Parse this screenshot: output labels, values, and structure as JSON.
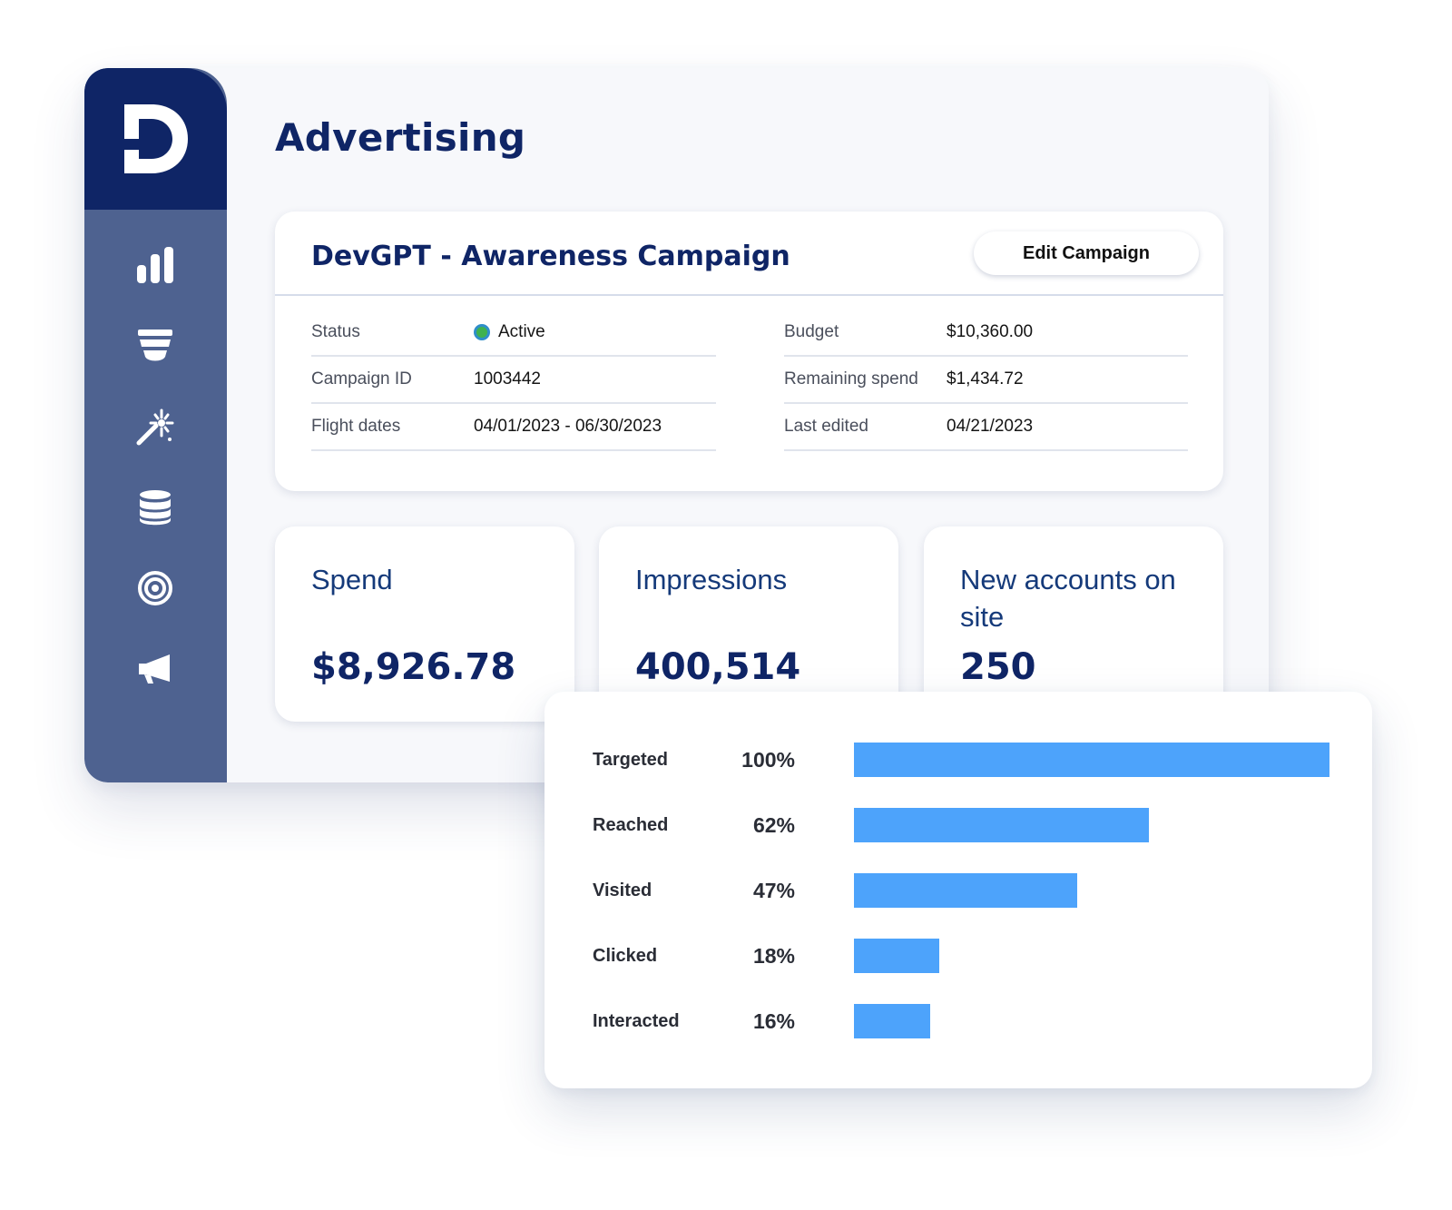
{
  "brand": {
    "logo_letter": "D",
    "logo_name": "d-logo-icon",
    "navy": "#0f2566",
    "sidebar": "#4e6290",
    "accent": "#4da3fb"
  },
  "sidebar": {
    "items": [
      {
        "icon": "bar-chart-icon"
      },
      {
        "icon": "funnel-icon"
      },
      {
        "icon": "magic-wand-icon"
      },
      {
        "icon": "database-icon"
      },
      {
        "icon": "target-icon"
      },
      {
        "icon": "megaphone-icon"
      }
    ]
  },
  "page": {
    "title": "Advertising"
  },
  "campaign": {
    "title": "DevGPT - Awareness Campaign",
    "edit_label": "Edit Campaign",
    "details_left": [
      {
        "label": "Status",
        "value": "Active",
        "status_color": "#3fb24f"
      },
      {
        "label": "Campaign ID",
        "value": "1003442"
      },
      {
        "label": "Flight dates",
        "value": "04/01/2023 - 06/30/2023"
      }
    ],
    "details_right": [
      {
        "label": "Budget",
        "value": "$10,360.00"
      },
      {
        "label": "Remaining spend",
        "value": "$1,434.72"
      },
      {
        "label": "Last edited",
        "value": "04/21/2023"
      }
    ]
  },
  "metrics": [
    {
      "label": "Spend",
      "value": "$8,926.78"
    },
    {
      "label": "Impressions",
      "value": "400,514"
    },
    {
      "label": "New accounts on site",
      "value": "250"
    }
  ],
  "chart_data": {
    "type": "bar",
    "orientation": "horizontal",
    "categories": [
      "Targeted",
      "Reached",
      "Visited",
      "Clicked",
      "Interacted"
    ],
    "values": [
      100,
      62,
      47,
      18,
      16
    ],
    "value_labels": [
      "100%",
      "62%",
      "47%",
      "18%",
      "16%"
    ],
    "xlim": [
      0,
      100
    ],
    "grid": false,
    "legend": "none",
    "bar_color": "#4da3fb"
  }
}
